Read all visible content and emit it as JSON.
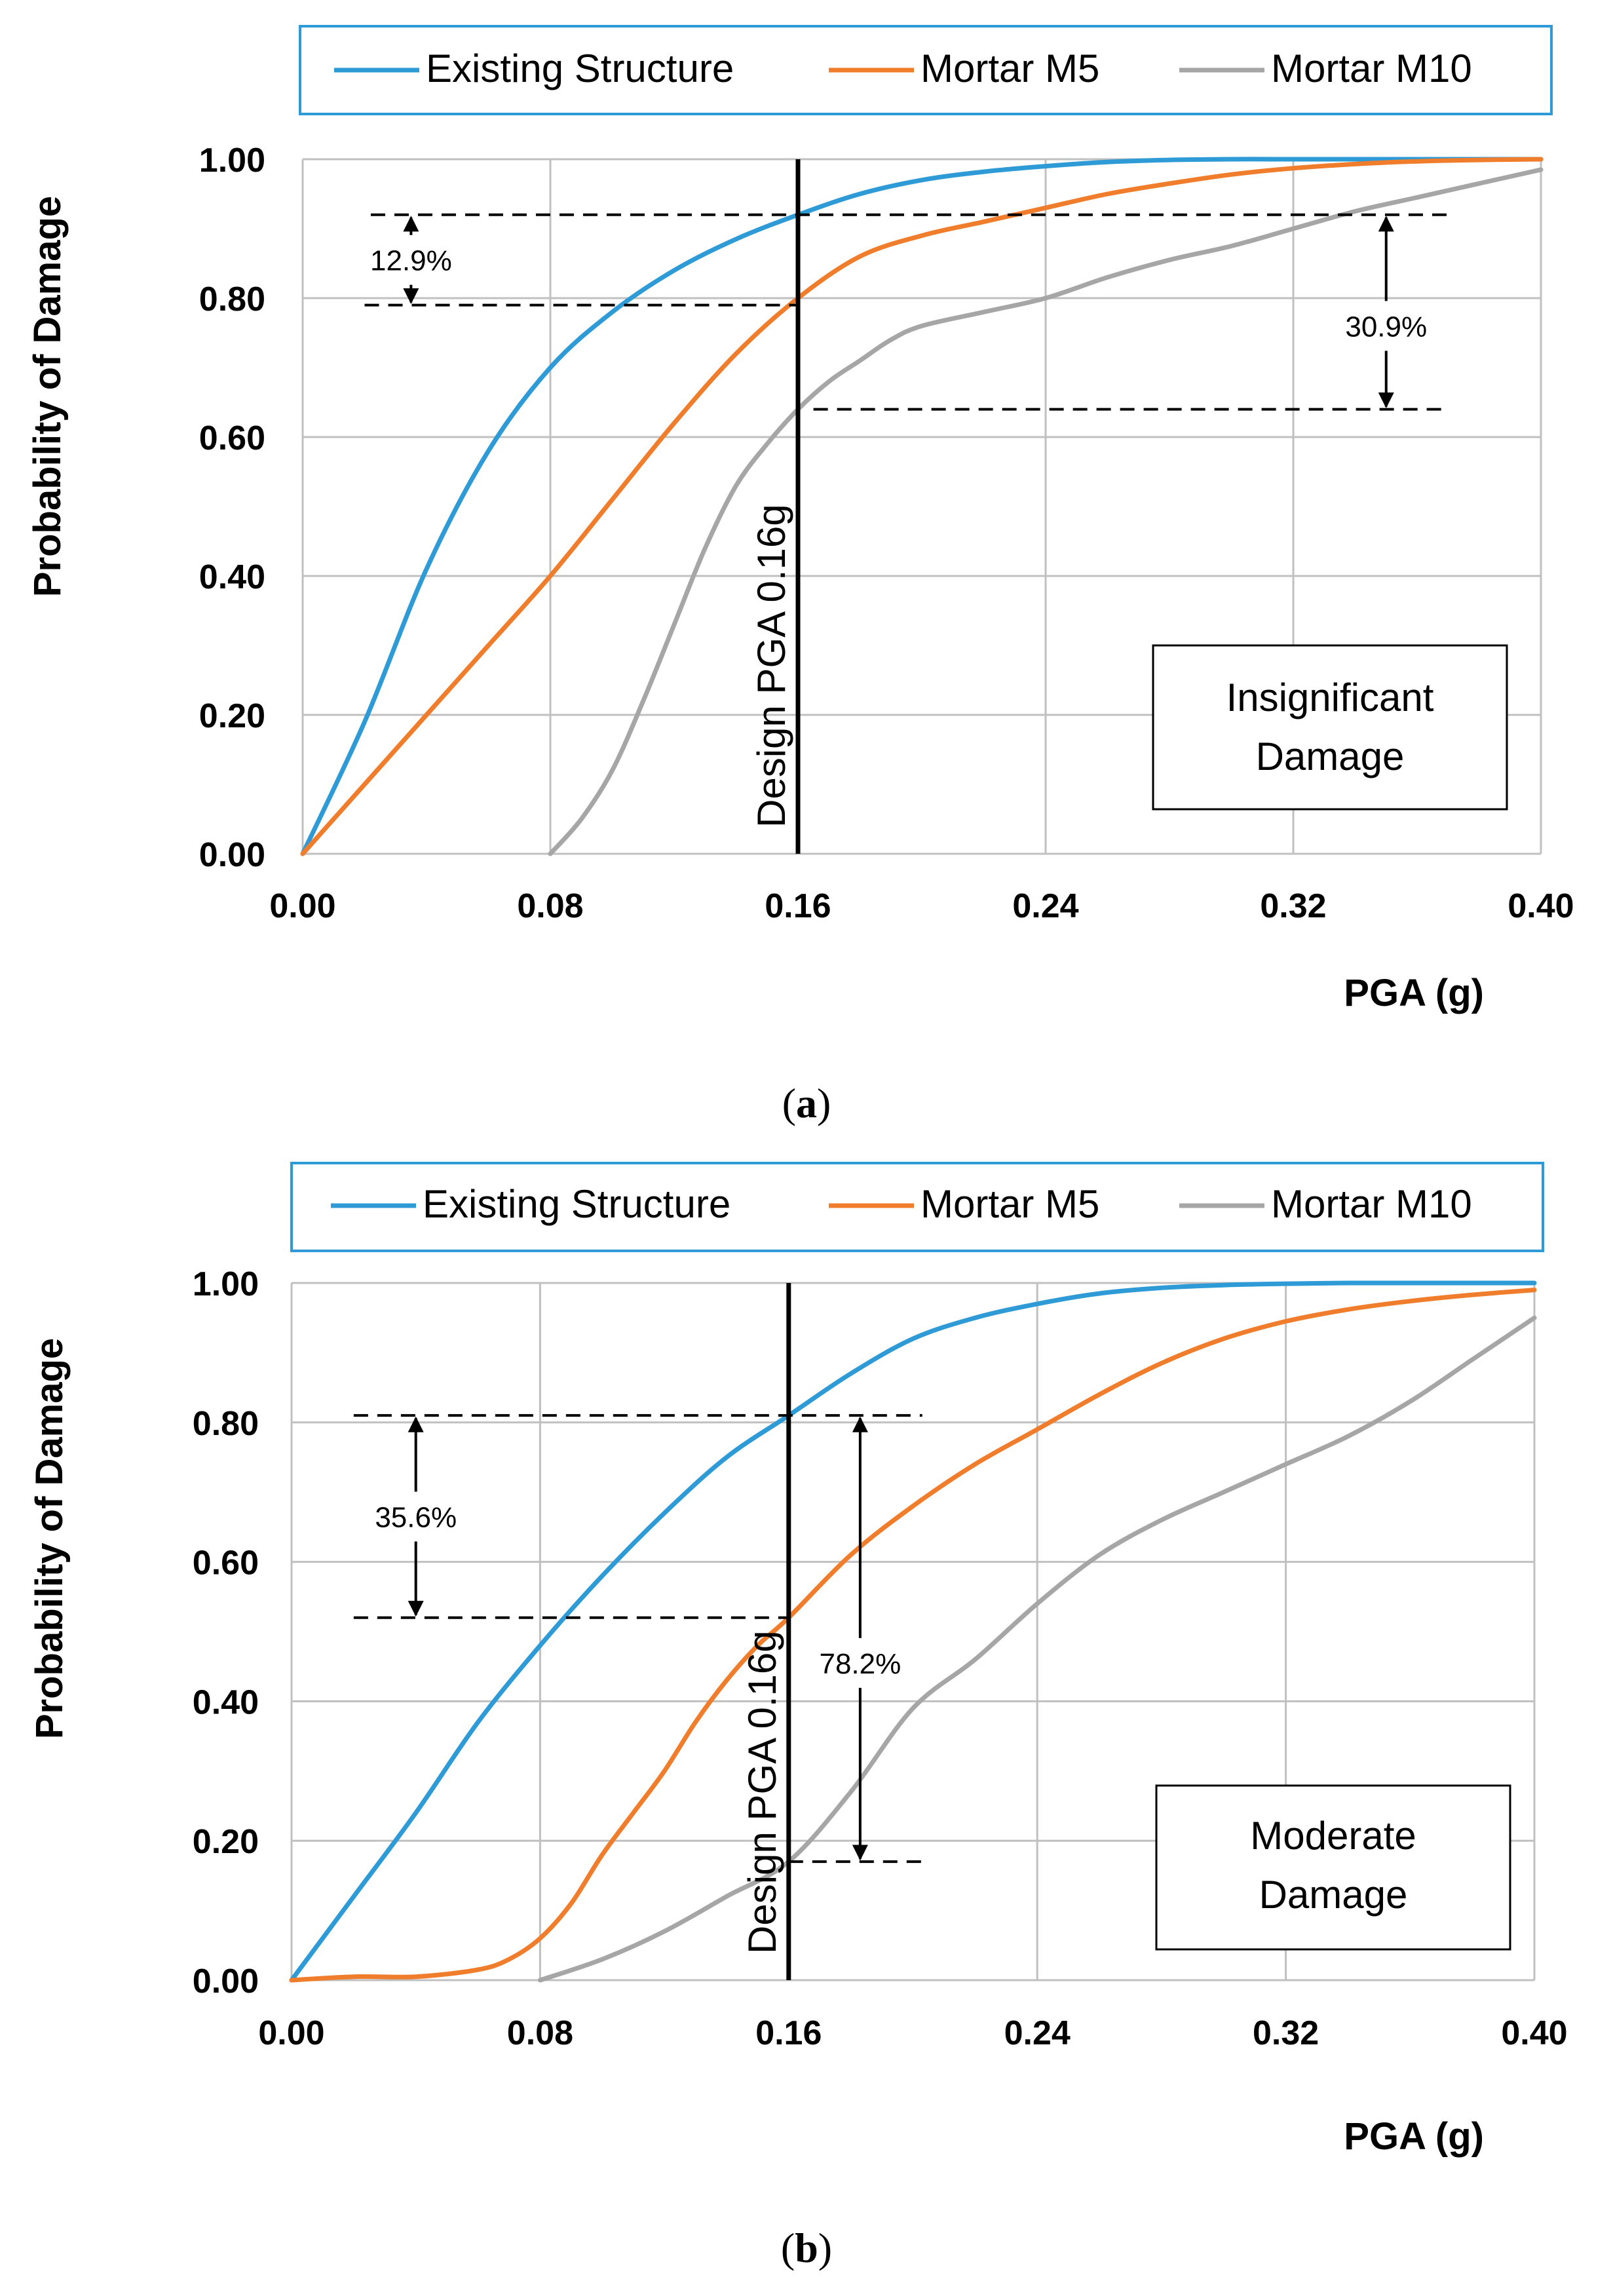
{
  "colors": {
    "existing": "#2E9BD6",
    "m5": "#F07D2B",
    "m10": "#A6A6A6",
    "legend_border": "#2E9BD6",
    "grid": "#C0C0C0"
  },
  "chart_data": [
    {
      "type": "line",
      "caption_letter": "a",
      "caption_open": "(",
      "caption_close": ")",
      "xlabel": "PGA (g)",
      "ylabel": "Probability of  Damage",
      "xlim": [
        0,
        0.4
      ],
      "ylim": [
        0,
        1
      ],
      "xticks": [
        "0.00",
        "0.08",
        "0.16",
        "0.24",
        "0.32",
        "0.40"
      ],
      "yticks": [
        "0.00",
        "0.20",
        "0.40",
        "0.60",
        "0.80",
        "1.00"
      ],
      "legend": [
        "Existing  Structure",
        "Mortar M5",
        "Mortar M10"
      ],
      "state_label_lines": [
        "Insignificant",
        "Damage"
      ],
      "design_line": {
        "x": 0.16,
        "label": "Design PGA 0.16g"
      },
      "series": [
        {
          "name": "Existing  Structure",
          "color_key": "existing",
          "x": [
            0,
            0.02,
            0.04,
            0.06,
            0.08,
            0.1,
            0.12,
            0.14,
            0.16,
            0.18,
            0.2,
            0.22,
            0.24,
            0.26,
            0.28,
            0.3,
            0.32,
            0.34,
            0.36,
            0.38,
            0.4
          ],
          "y": [
            0,
            0.19,
            0.41,
            0.58,
            0.7,
            0.78,
            0.84,
            0.885,
            0.92,
            0.95,
            0.97,
            0.982,
            0.99,
            0.996,
            0.999,
            1.0,
            1.0,
            1.0,
            1.0,
            1.0,
            1.0
          ]
        },
        {
          "name": "Mortar M5",
          "color_key": "m5",
          "x": [
            0,
            0.02,
            0.04,
            0.06,
            0.08,
            0.1,
            0.12,
            0.14,
            0.16,
            0.18,
            0.2,
            0.22,
            0.24,
            0.26,
            0.28,
            0.3,
            0.32,
            0.34,
            0.36,
            0.38,
            0.4
          ],
          "y": [
            0,
            0.1,
            0.2,
            0.3,
            0.4,
            0.51,
            0.62,
            0.72,
            0.8,
            0.86,
            0.89,
            0.91,
            0.93,
            0.95,
            0.965,
            0.978,
            0.987,
            0.993,
            0.997,
            0.999,
            1.0
          ]
        },
        {
          "name": "Mortar M10",
          "color_key": "m10",
          "x": [
            0.08,
            0.09,
            0.1,
            0.11,
            0.12,
            0.13,
            0.14,
            0.15,
            0.16,
            0.17,
            0.18,
            0.19,
            0.2,
            0.22,
            0.24,
            0.26,
            0.28,
            0.3,
            0.32,
            0.34,
            0.36,
            0.38,
            0.4
          ],
          "y": [
            0,
            0.05,
            0.12,
            0.22,
            0.33,
            0.44,
            0.53,
            0.59,
            0.64,
            0.68,
            0.71,
            0.74,
            0.76,
            0.78,
            0.8,
            0.83,
            0.855,
            0.875,
            0.9,
            0.925,
            0.945,
            0.965,
            0.985
          ]
        }
      ],
      "annotations": [
        {
          "text": "12.9%",
          "x": 0.035,
          "y_top": 0.92,
          "y_bottom": 0.79,
          "label_y": 0.855,
          "guide_top": {
            "x0": 0.022,
            "x1": 0.37
          },
          "guide_bottom": {
            "x0": 0.02,
            "x1": 0.16
          }
        },
        {
          "text": "30.9%",
          "x": 0.35,
          "y_top": 0.92,
          "y_bottom": 0.64,
          "label_y": 0.76,
          "guide_bottom": {
            "x0": 0.165,
            "x1": 0.37
          }
        }
      ]
    },
    {
      "type": "line",
      "caption_letter": "b",
      "caption_open": "(",
      "caption_close": ")",
      "xlabel": "PGA (g)",
      "ylabel": "Probability of Damage",
      "xlim": [
        0,
        0.4
      ],
      "ylim": [
        0,
        1
      ],
      "xticks": [
        "0.00",
        "0.08",
        "0.16",
        "0.24",
        "0.32",
        "0.40"
      ],
      "yticks": [
        "0.00",
        "0.20",
        "0.40",
        "0.60",
        "0.80",
        "1.00"
      ],
      "legend": [
        "Existing  Structure",
        "Mortar M5",
        "Mortar M10"
      ],
      "state_label_lines": [
        "Moderate",
        "Damage"
      ],
      "design_line": {
        "x": 0.16,
        "label": "Design PGA 0.16g"
      },
      "series": [
        {
          "name": "Existing  Structure",
          "color_key": "existing",
          "x": [
            0,
            0.02,
            0.04,
            0.06,
            0.08,
            0.1,
            0.12,
            0.14,
            0.16,
            0.18,
            0.2,
            0.22,
            0.24,
            0.26,
            0.28,
            0.3,
            0.32,
            0.34,
            0.36,
            0.38,
            0.4
          ],
          "y": [
            0,
            0.12,
            0.24,
            0.37,
            0.48,
            0.58,
            0.67,
            0.75,
            0.81,
            0.87,
            0.92,
            0.95,
            0.97,
            0.985,
            0.993,
            0.997,
            0.999,
            1.0,
            1.0,
            1.0,
            1.0
          ]
        },
        {
          "name": "Mortar M5",
          "color_key": "m5",
          "x": [
            0,
            0.02,
            0.04,
            0.06,
            0.07,
            0.08,
            0.09,
            0.1,
            0.11,
            0.12,
            0.13,
            0.14,
            0.15,
            0.16,
            0.18,
            0.2,
            0.22,
            0.24,
            0.26,
            0.28,
            0.3,
            0.32,
            0.34,
            0.36,
            0.38,
            0.4
          ],
          "y": [
            0,
            0.005,
            0.005,
            0.015,
            0.03,
            0.06,
            0.11,
            0.18,
            0.24,
            0.3,
            0.37,
            0.43,
            0.48,
            0.52,
            0.61,
            0.68,
            0.74,
            0.79,
            0.84,
            0.885,
            0.92,
            0.945,
            0.962,
            0.974,
            0.983,
            0.99
          ]
        },
        {
          "name": "Mortar M10",
          "color_key": "m10",
          "x": [
            0.08,
            0.1,
            0.12,
            0.14,
            0.16,
            0.18,
            0.2,
            0.22,
            0.24,
            0.26,
            0.28,
            0.3,
            0.32,
            0.34,
            0.36,
            0.38,
            0.4
          ],
          "y": [
            0,
            0.03,
            0.07,
            0.12,
            0.17,
            0.27,
            0.39,
            0.46,
            0.54,
            0.61,
            0.66,
            0.7,
            0.74,
            0.78,
            0.83,
            0.89,
            0.95
          ]
        }
      ],
      "annotations": [
        {
          "text": "35.6%",
          "x": 0.04,
          "y_top": 0.81,
          "y_bottom": 0.52,
          "label_y": 0.665,
          "guide_top": {
            "x0": 0.02,
            "x1": 0.203
          },
          "guide_bottom": {
            "x0": 0.02,
            "x1": 0.16
          }
        },
        {
          "text": "78.2%",
          "x": 0.183,
          "y_top": 0.81,
          "y_bottom": 0.17,
          "label_y": 0.455,
          "guide_bottom": {
            "x0": 0.16,
            "x1": 0.203
          }
        }
      ]
    }
  ]
}
